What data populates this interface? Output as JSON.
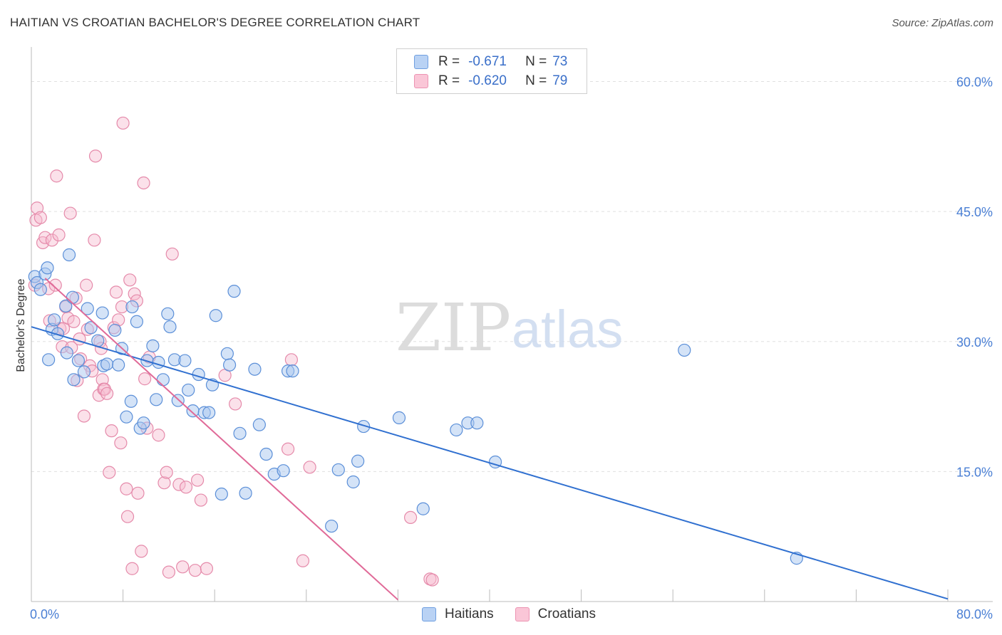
{
  "title": "HAITIAN VS CROATIAN BACHELOR'S DEGREE CORRELATION CHART",
  "source": "Source: ZipAtlas.com",
  "watermark": {
    "zip": "ZIP",
    "atlas": "atlas"
  },
  "legend": {
    "haitians": {
      "r_label": "R =",
      "r_value": "-0.671",
      "n_label": "N =",
      "n_value": "73"
    },
    "croatians": {
      "r_label": "R =",
      "r_value": "-0.620",
      "n_label": "N =",
      "n_value": "79"
    }
  },
  "bottom_legend": {
    "haitians": "Haitians",
    "croatians": "Croatians"
  },
  "colors": {
    "haitian_fill": "#a9c8f0",
    "haitian_stroke": "#5b8fd8",
    "haitian_line": "#3070d0",
    "croatian_fill": "#f7bcd0",
    "croatian_stroke": "#e58aaa",
    "croatian_line": "#e06a98",
    "grid": "#e0e0e0",
    "tick_text": "#4a7fd4"
  },
  "chart_data": {
    "type": "scatter",
    "title": "HAITIAN VS CROATIAN BACHELOR'S DEGREE CORRELATION CHART",
    "xlabel": "",
    "ylabel": "Bachelor's Degree",
    "xlim": [
      0,
      80
    ],
    "ylim": [
      0,
      63
    ],
    "x_tick_labels": [
      "0.0%",
      "80.0%"
    ],
    "y_ticks": [
      15,
      30,
      45,
      60
    ],
    "y_tick_labels": [
      "15.0%",
      "30.0%",
      "45.0%",
      "60.0%"
    ],
    "series": [
      {
        "name": "Haitians",
        "r": -0.671,
        "n": 73,
        "trend": {
          "x": [
            0,
            80
          ],
          "y": [
            31.7,
            0.3
          ]
        },
        "points": [
          [
            0.3,
            37.5
          ],
          [
            0.5,
            36.8
          ],
          [
            0.8,
            36.0
          ],
          [
            1.2,
            37.8
          ],
          [
            1.4,
            38.5
          ],
          [
            1.5,
            27.9
          ],
          [
            1.8,
            31.4
          ],
          [
            2.0,
            32.5
          ],
          [
            2.3,
            30.9
          ],
          [
            3.0,
            34.1
          ],
          [
            3.1,
            28.7
          ],
          [
            3.3,
            40.0
          ],
          [
            3.6,
            35.1
          ],
          [
            3.7,
            25.6
          ],
          [
            4.1,
            27.8
          ],
          [
            4.6,
            26.5
          ],
          [
            4.9,
            33.8
          ],
          [
            5.2,
            31.6
          ],
          [
            5.8,
            30.1
          ],
          [
            6.2,
            33.3
          ],
          [
            6.3,
            27.2
          ],
          [
            6.6,
            27.4
          ],
          [
            7.3,
            31.3
          ],
          [
            7.6,
            27.3
          ],
          [
            7.9,
            29.2
          ],
          [
            8.3,
            21.3
          ],
          [
            8.7,
            23.1
          ],
          [
            8.8,
            34.0
          ],
          [
            9.2,
            32.3
          ],
          [
            9.5,
            20.0
          ],
          [
            9.8,
            20.6
          ],
          [
            10.1,
            27.8
          ],
          [
            10.6,
            29.5
          ],
          [
            10.9,
            23.3
          ],
          [
            11.1,
            27.6
          ],
          [
            11.5,
            25.6
          ],
          [
            11.9,
            33.2
          ],
          [
            12.1,
            31.7
          ],
          [
            12.5,
            27.9
          ],
          [
            12.8,
            23.2
          ],
          [
            13.4,
            27.8
          ],
          [
            13.7,
            24.4
          ],
          [
            14.1,
            22.0
          ],
          [
            14.6,
            26.2
          ],
          [
            15.1,
            21.8
          ],
          [
            15.5,
            21.8
          ],
          [
            15.8,
            25.0
          ],
          [
            16.1,
            33.0
          ],
          [
            16.6,
            12.4
          ],
          [
            17.1,
            28.6
          ],
          [
            17.3,
            27.3
          ],
          [
            17.7,
            35.8
          ],
          [
            18.2,
            19.4
          ],
          [
            18.7,
            12.5
          ],
          [
            19.5,
            26.8
          ],
          [
            19.9,
            20.4
          ],
          [
            20.5,
            17.0
          ],
          [
            21.2,
            14.7
          ],
          [
            22.0,
            15.1
          ],
          [
            22.4,
            26.6
          ],
          [
            22.8,
            26.6
          ],
          [
            26.2,
            8.7
          ],
          [
            26.8,
            15.2
          ],
          [
            28.1,
            13.8
          ],
          [
            28.5,
            16.2
          ],
          [
            29.0,
            20.2
          ],
          [
            32.1,
            21.2
          ],
          [
            34.2,
            10.7
          ],
          [
            37.1,
            19.8
          ],
          [
            38.1,
            20.6
          ],
          [
            38.9,
            20.6
          ],
          [
            40.5,
            16.1
          ],
          [
            57.0,
            29.0
          ],
          [
            66.8,
            5.0
          ]
        ]
      },
      {
        "name": "Croatians",
        "r": -0.62,
        "n": 79,
        "trend": {
          "x": [
            1.2,
            32.0
          ],
          "y": [
            37.3,
            0.2
          ]
        },
        "points": [
          [
            0.3,
            36.5
          ],
          [
            0.4,
            44.0
          ],
          [
            0.5,
            45.4
          ],
          [
            0.8,
            44.3
          ],
          [
            1.0,
            41.4
          ],
          [
            1.2,
            42.0
          ],
          [
            1.5,
            36.1
          ],
          [
            1.6,
            32.4
          ],
          [
            1.8,
            41.7
          ],
          [
            2.1,
            36.5
          ],
          [
            2.2,
            49.1
          ],
          [
            2.4,
            42.3
          ],
          [
            2.5,
            31.5
          ],
          [
            2.7,
            29.4
          ],
          [
            2.8,
            31.5
          ],
          [
            3.0,
            34.0
          ],
          [
            3.2,
            32.7
          ],
          [
            3.4,
            44.8
          ],
          [
            3.5,
            29.3
          ],
          [
            3.7,
            32.3
          ],
          [
            3.9,
            35.0
          ],
          [
            4.0,
            25.5
          ],
          [
            4.2,
            30.3
          ],
          [
            4.3,
            28.0
          ],
          [
            4.6,
            21.4
          ],
          [
            4.8,
            36.5
          ],
          [
            4.9,
            31.4
          ],
          [
            5.1,
            27.2
          ],
          [
            5.3,
            26.6
          ],
          [
            5.5,
            41.7
          ],
          [
            5.6,
            51.4
          ],
          [
            5.9,
            23.8
          ],
          [
            6.0,
            30.0
          ],
          [
            6.1,
            29.2
          ],
          [
            6.2,
            25.6
          ],
          [
            6.3,
            24.5
          ],
          [
            6.4,
            24.5
          ],
          [
            6.6,
            24.0
          ],
          [
            6.8,
            14.9
          ],
          [
            7.0,
            19.7
          ],
          [
            7.2,
            31.6
          ],
          [
            7.4,
            35.7
          ],
          [
            7.6,
            32.5
          ],
          [
            7.8,
            18.3
          ],
          [
            7.9,
            34.0
          ],
          [
            8.0,
            55.2
          ],
          [
            8.3,
            13.0
          ],
          [
            8.4,
            9.8
          ],
          [
            8.6,
            37.1
          ],
          [
            8.8,
            3.8
          ],
          [
            9.0,
            35.5
          ],
          [
            9.2,
            34.7
          ],
          [
            9.3,
            12.5
          ],
          [
            9.6,
            5.8
          ],
          [
            9.8,
            48.3
          ],
          [
            9.9,
            25.7
          ],
          [
            10.1,
            20.0
          ],
          [
            10.3,
            28.2
          ],
          [
            11.1,
            19.2
          ],
          [
            11.6,
            13.7
          ],
          [
            11.8,
            14.9
          ],
          [
            12.0,
            3.4
          ],
          [
            12.3,
            40.1
          ],
          [
            12.9,
            13.5
          ],
          [
            13.2,
            4.0
          ],
          [
            13.5,
            13.2
          ],
          [
            14.3,
            3.6
          ],
          [
            14.5,
            14.0
          ],
          [
            14.8,
            11.7
          ],
          [
            15.3,
            3.8
          ],
          [
            16.9,
            26.1
          ],
          [
            17.8,
            22.8
          ],
          [
            22.4,
            17.6
          ],
          [
            22.7,
            27.9
          ],
          [
            23.7,
            4.7
          ],
          [
            24.3,
            15.5
          ],
          [
            33.1,
            9.7
          ],
          [
            34.8,
            2.6
          ],
          [
            35.0,
            2.5
          ]
        ]
      }
    ]
  }
}
